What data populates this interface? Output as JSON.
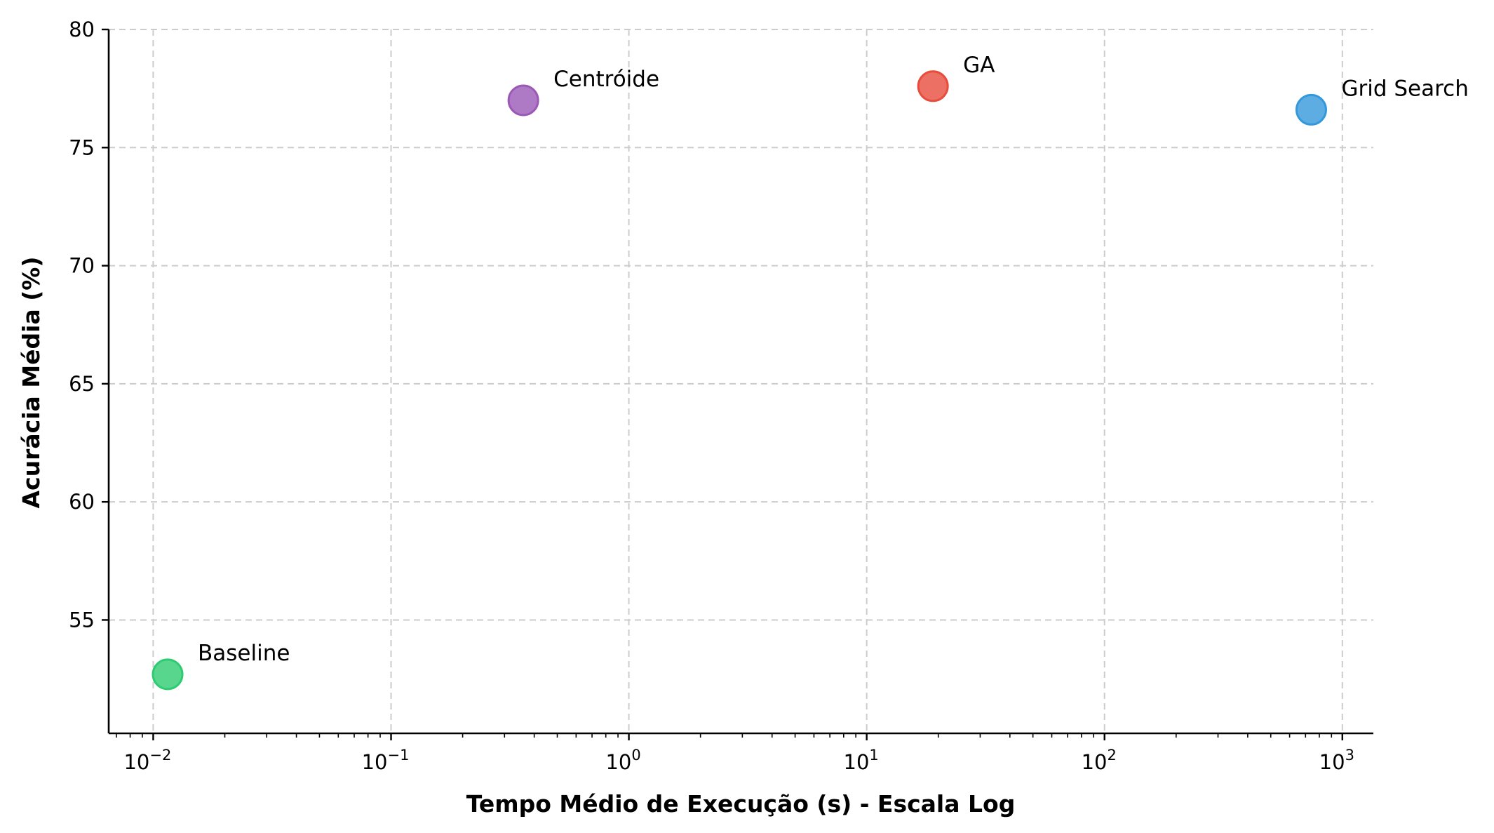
{
  "chart_data": {
    "type": "scatter",
    "title": "",
    "xlabel": "Tempo Médio de Execução (s) - Escala Log",
    "ylabel": "Acurácia Média (%)",
    "xscale": "log",
    "xlim": [
      0.0065,
      1350
    ],
    "ylim": [
      50.2,
      80
    ],
    "xticks": [
      {
        "value": 0.01,
        "base": "10",
        "exp": "−2"
      },
      {
        "value": 0.1,
        "base": "10",
        "exp": "−1"
      },
      {
        "value": 1,
        "base": "10",
        "exp": "0"
      },
      {
        "value": 10,
        "base": "10",
        "exp": "1"
      },
      {
        "value": 100,
        "base": "10",
        "exp": "2"
      },
      {
        "value": 1000,
        "base": "10",
        "exp": "3"
      }
    ],
    "yticks": [
      55,
      60,
      65,
      70,
      75,
      80
    ],
    "grid": true,
    "points": [
      {
        "label": "Baseline",
        "x": 0.0115,
        "y": 52.7,
        "color": "#2ecc71"
      },
      {
        "label": "Centróide",
        "x": 0.36,
        "y": 77.0,
        "color": "#9b59b6"
      },
      {
        "label": "GA",
        "x": 19,
        "y": 77.6,
        "color": "#e74c3c"
      },
      {
        "label": "Grid Search",
        "x": 740,
        "y": 76.6,
        "color": "#3498db"
      }
    ]
  }
}
